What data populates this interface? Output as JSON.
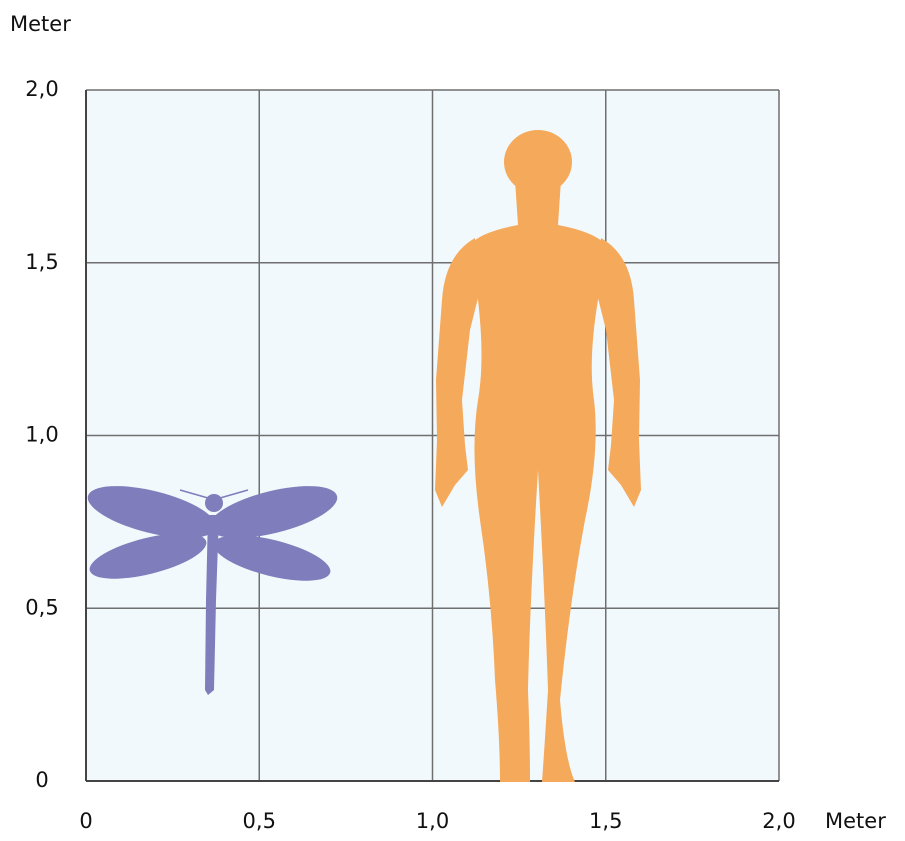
{
  "y_axis": {
    "label": "Meter",
    "lim": [
      0,
      2
    ],
    "ticks": [
      0,
      {
        "value": 0.5,
        "label": "0,5"
      },
      {
        "value": 1,
        "label": "1,0"
      },
      {
        "value": 1.5,
        "label": "1,5"
      },
      {
        "value": 2,
        "label": "2,0"
      }
    ]
  },
  "x_axis": {
    "label": "Meter",
    "lim": [
      0,
      2
    ],
    "ticks": [
      0,
      {
        "value": 0.5,
        "label": "0,5"
      },
      {
        "value": 1,
        "label": "1,0"
      },
      {
        "value": 1.5,
        "label": "1,5"
      },
      {
        "value": 2,
        "label": "2,0"
      }
    ]
  }
}
